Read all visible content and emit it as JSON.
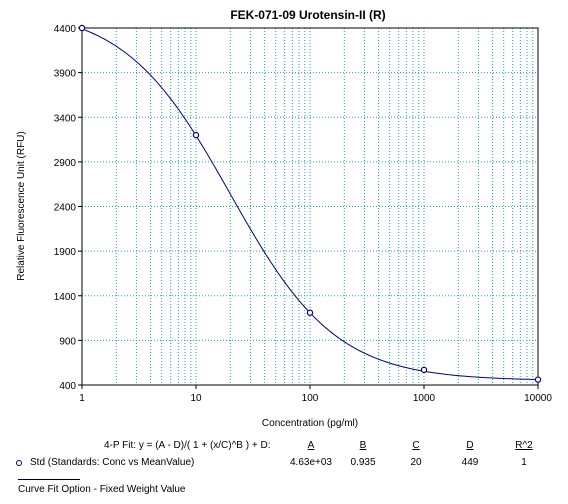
{
  "colors": {
    "grid": "#1ba3b0",
    "curve": "#000080",
    "axis": "#000000",
    "marker": "#000080"
  },
  "chart_data": {
    "type": "scatter",
    "title": "FEK-071-09 Urotensin-II (R)",
    "xlabel": "Concentration (pg/ml)",
    "ylabel": "Relative Fluorescence Unit (RFU)",
    "xscale": "log",
    "xlim": [
      1,
      10000
    ],
    "ylim": [
      400,
      4400
    ],
    "x_tick_values": [
      1,
      10,
      100,
      1000,
      10000
    ],
    "x_tick_labels": [
      "1",
      "10",
      "100",
      "1000",
      "10000"
    ],
    "y_tick_values": [
      400,
      900,
      1400,
      1900,
      2400,
      2900,
      3400,
      3900,
      4400
    ],
    "y_tick_labels": [
      "400",
      "900",
      "1400",
      "1900",
      "2400",
      "2900",
      "3400",
      "3900",
      "4400"
    ],
    "grid": true,
    "series": [
      {
        "name": "Std (Standards: Conc vs MeanValue)",
        "points": [
          [
            1,
            4400
          ],
          [
            10,
            3200
          ],
          [
            100,
            1210
          ],
          [
            1000,
            570
          ],
          [
            10000,
            460
          ]
        ],
        "fit": {
          "model": "4-P Fit",
          "A": 4630,
          "B": 0.935,
          "C": 20,
          "D": 449
        }
      }
    ]
  },
  "fit_table": {
    "equation": "4-P Fit: y = (A - D)/( 1 + (x/C)^B ) + D:",
    "headers": [
      "A",
      "B",
      "C",
      "D",
      "R^2"
    ],
    "row_label": "Std (Standards: Conc vs MeanValue)",
    "row_values": [
      "4.63e+03",
      "0.935",
      "20",
      "449",
      "1"
    ]
  },
  "footnote": "Curve Fit Option - Fixed Weight Value"
}
